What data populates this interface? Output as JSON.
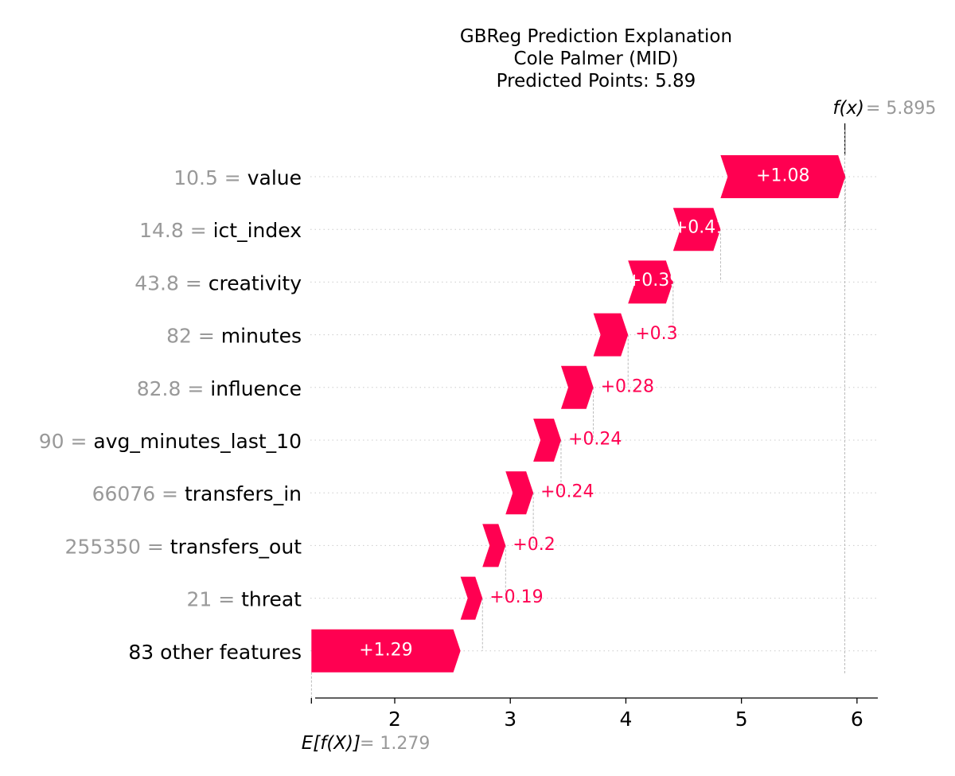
{
  "chart_data": {
    "type": "waterfall",
    "title_lines": [
      "GBReg Prediction Explanation",
      "Cole Palmer (MID)",
      "Predicted Points: 5.89"
    ],
    "base_value": 1.279,
    "base_label": "E[f(X)]",
    "base_value_text": "1.279",
    "output_value": 5.895,
    "output_label": "f(x)",
    "output_value_text": "5.895",
    "features": [
      {
        "value_text": "10.5",
        "name": "value",
        "contribution": 1.08,
        "label": "+1.08"
      },
      {
        "value_text": "14.8",
        "name": "ict_index",
        "contribution": 0.41,
        "label": "+0.41"
      },
      {
        "value_text": "43.8",
        "name": "creativity",
        "contribution": 0.39,
        "label": "+0.39"
      },
      {
        "value_text": "82",
        "name": "minutes",
        "contribution": 0.3,
        "label": "+0.3"
      },
      {
        "value_text": "82.8",
        "name": "influence",
        "contribution": 0.28,
        "label": "+0.28"
      },
      {
        "value_text": "90",
        "name": "avg_minutes_last_10",
        "contribution": 0.24,
        "label": "+0.24"
      },
      {
        "value_text": "66076",
        "name": "transfers_in",
        "contribution": 0.24,
        "label": "+0.24"
      },
      {
        "value_text": "255350",
        "name": "transfers_out",
        "contribution": 0.2,
        "label": "+0.2"
      },
      {
        "value_text": "21",
        "name": "threat",
        "contribution": 0.19,
        "label": "+0.19"
      },
      {
        "value_text": "",
        "name": "83 other features",
        "contribution": 1.29,
        "label": "+1.29"
      }
    ],
    "xticks": [
      2,
      3,
      4,
      5,
      6
    ],
    "xlim": [
      1.27,
      6.18
    ],
    "colors": {
      "positive": "#ff0051",
      "value_gray": "#999999"
    }
  }
}
